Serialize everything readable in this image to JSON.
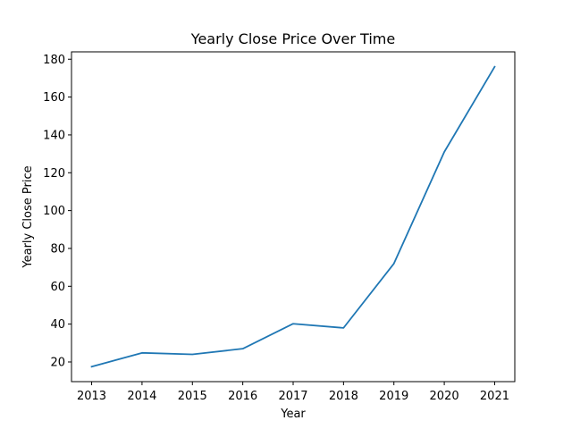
{
  "chart_data": {
    "type": "line",
    "title": "Yearly Close Price Over Time",
    "xlabel": "Year",
    "ylabel": "Yearly Close Price",
    "x": [
      2013,
      2014,
      2015,
      2016,
      2017,
      2018,
      2019,
      2020,
      2021
    ],
    "series": [
      {
        "values": [
          17.5,
          24.8,
          24.0,
          27.0,
          40.2,
          38.0,
          72.0,
          131.0,
          176.0
        ],
        "color": "#1f77b4"
      }
    ],
    "xlim": [
      2012.6,
      2021.4
    ],
    "ylim": [
      9.6,
      183.9
    ],
    "xticks": [
      "2013",
      "2014",
      "2015",
      "2016",
      "2017",
      "2018",
      "2019",
      "2020",
      "2021"
    ],
    "yticks": [
      "20",
      "40",
      "60",
      "80",
      "100",
      "120",
      "140",
      "160",
      "180"
    ],
    "grid": false,
    "legend": "none"
  }
}
